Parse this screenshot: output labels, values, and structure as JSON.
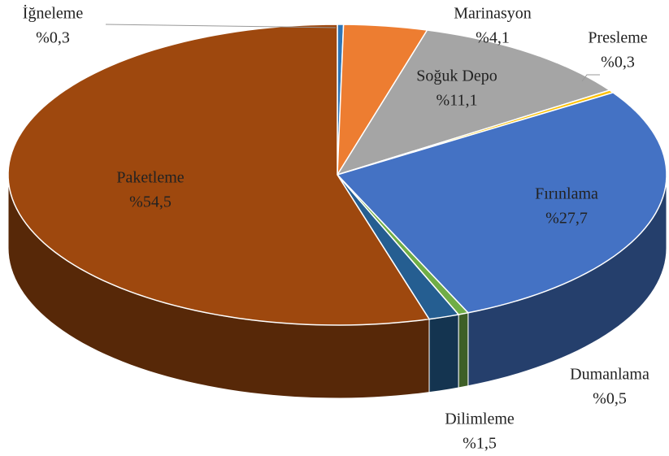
{
  "chart_data": {
    "type": "pie3d",
    "categories": [
      "İğneleme",
      "Marinasyon",
      "Soğuk Depo",
      "Presleme",
      "Fırınlama",
      "Dumanlama",
      "Dilimleme",
      "Paketleme"
    ],
    "values": [
      0.3,
      4.1,
      11.1,
      0.3,
      27.7,
      0.5,
      1.5,
      54.5
    ],
    "value_labels": [
      "%0,3",
      "%4,1",
      "%11,1",
      "%0,3",
      "%27,7",
      "%0,5",
      "%1,5",
      "%54,5"
    ],
    "colors": [
      "#2e75b6",
      "#ed7d31",
      "#a5a5a5",
      "#ffc000",
      "#4472c4",
      "#70ad47",
      "#255e91",
      "#9e480e"
    ]
  }
}
